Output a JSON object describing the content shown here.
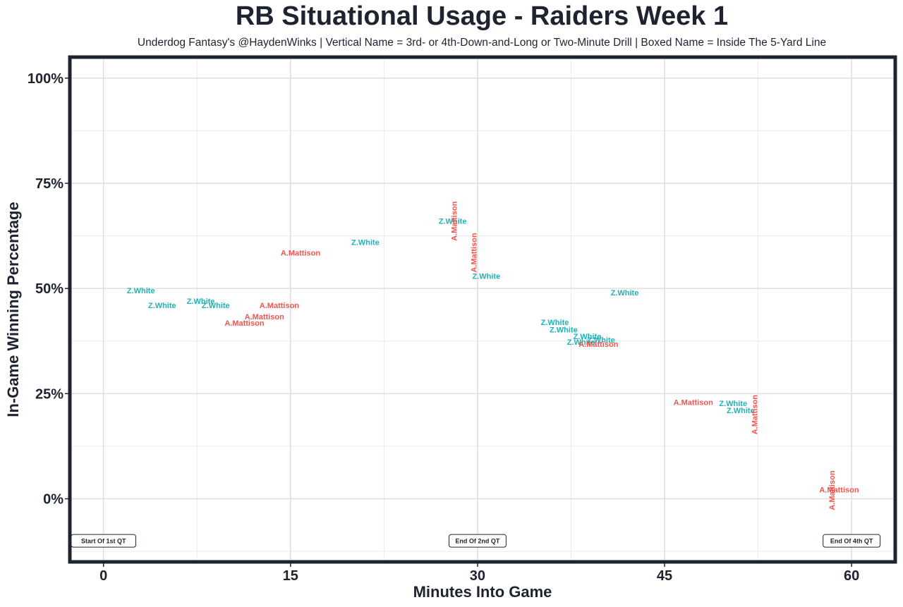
{
  "chart_data": {
    "type": "scatter",
    "title": "RB Situational Usage - Raiders Week 1",
    "subtitle": "Underdog Fantasy's @HaydenWinks | Vertical Name = 3rd- or 4th-Down-and-Long or Two-Minute Drill | Boxed Name = Inside The 5-Yard Line",
    "xlabel": "Minutes Into Game",
    "ylabel": "In-Game Winning Percentage",
    "xlim": [
      -2.7,
      63.5
    ],
    "ylim": [
      -15,
      105
    ],
    "xticks": [
      {
        "value": 0,
        "label": "0"
      },
      {
        "value": 15,
        "label": "15"
      },
      {
        "value": 30,
        "label": "30"
      },
      {
        "value": 45,
        "label": "45"
      },
      {
        "value": 60,
        "label": "60"
      }
    ],
    "yticks": [
      {
        "value": 0,
        "label": "0%"
      },
      {
        "value": 25,
        "label": "25%"
      },
      {
        "value": 50,
        "label": "50%"
      },
      {
        "value": 75,
        "label": "75%"
      },
      {
        "value": 100,
        "label": "100%"
      }
    ],
    "grid": true,
    "series": [
      {
        "name": "Z.White",
        "color": "#20b2b4",
        "points": [
          {
            "x": 3.0,
            "y": 49.5,
            "label": "Z.White",
            "vertical": false
          },
          {
            "x": 4.7,
            "y": 46.0,
            "label": "Z.White",
            "vertical": false
          },
          {
            "x": 7.8,
            "y": 47.0,
            "label": "Z.White",
            "vertical": false
          },
          {
            "x": 9.0,
            "y": 46.0,
            "label": "Z.White",
            "vertical": false
          },
          {
            "x": 21.0,
            "y": 61.0,
            "label": "Z.White",
            "vertical": false
          },
          {
            "x": 28.0,
            "y": 66.0,
            "label": "Z.White",
            "vertical": false
          },
          {
            "x": 30.7,
            "y": 53.0,
            "label": "Z.White",
            "vertical": false
          },
          {
            "x": 36.2,
            "y": 42.0,
            "label": "Z.White",
            "vertical": false
          },
          {
            "x": 36.9,
            "y": 40.2,
            "label": "Z.White",
            "vertical": false
          },
          {
            "x": 38.8,
            "y": 38.6,
            "label": "Z.White",
            "vertical": false
          },
          {
            "x": 38.3,
            "y": 37.3,
            "label": "Z.White",
            "vertical": false
          },
          {
            "x": 39.9,
            "y": 37.8,
            "label": "Z.White",
            "vertical": false
          },
          {
            "x": 41.8,
            "y": 49.0,
            "label": "Z.White",
            "vertical": false
          },
          {
            "x": 50.5,
            "y": 22.7,
            "label": "Z.White",
            "vertical": false
          },
          {
            "x": 51.1,
            "y": 21.0,
            "label": "Z.White",
            "vertical": false
          }
        ]
      },
      {
        "name": "A.Mattison",
        "color": "#f0544f",
        "points": [
          {
            "x": 15.8,
            "y": 58.5,
            "label": "A.Mattison",
            "vertical": false
          },
          {
            "x": 14.1,
            "y": 46.0,
            "label": "A.Mattison",
            "vertical": false
          },
          {
            "x": 12.9,
            "y": 43.3,
            "label": "A.Mattison",
            "vertical": false
          },
          {
            "x": 11.3,
            "y": 41.8,
            "label": "A.Mattison",
            "vertical": false
          },
          {
            "x": 28.1,
            "y": 66.0,
            "label": "A.Mattison",
            "vertical": true
          },
          {
            "x": 29.7,
            "y": 58.5,
            "label": "A.Mattison",
            "vertical": true
          },
          {
            "x": 39.7,
            "y": 36.8,
            "label": "A.Mattison",
            "vertical": false
          },
          {
            "x": 47.3,
            "y": 23.0,
            "label": "A.Mattison",
            "vertical": false
          },
          {
            "x": 52.2,
            "y": 20.0,
            "label": "A.Mattison",
            "vertical": true
          },
          {
            "x": 58.4,
            "y": 2.0,
            "label": "A.Mattison",
            "vertical": true
          },
          {
            "x": 59.0,
            "y": 2.2,
            "label": "A.Mattison",
            "vertical": false
          }
        ]
      }
    ],
    "annotations": [
      {
        "x": 0,
        "y": -10,
        "text": "Start Of 1st QT"
      },
      {
        "x": 30,
        "y": -10,
        "text": "End Of 2nd QT"
      },
      {
        "x": 60,
        "y": -10,
        "text": "End Of 4th QT"
      }
    ]
  }
}
